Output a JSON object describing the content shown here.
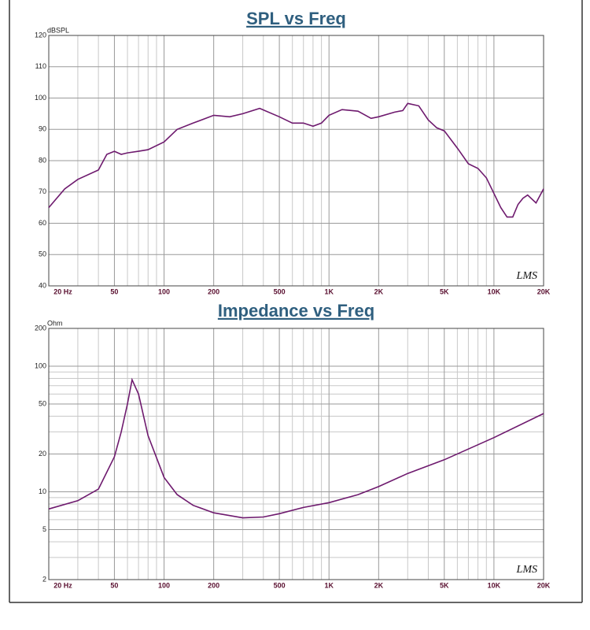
{
  "chart_data": [
    {
      "type": "line",
      "title": "SPL vs Freq",
      "y_label": "dBSPL",
      "watermark": "LMS",
      "xscale": "log",
      "yscale": "linear",
      "grid": true,
      "color": "#6e1a6e",
      "x": [
        20,
        25,
        30,
        40,
        45,
        50,
        55,
        60,
        70,
        80,
        100,
        120,
        150,
        200,
        250,
        300,
        380,
        500,
        600,
        700,
        800,
        900,
        1000,
        1200,
        1500,
        1800,
        2000,
        2500,
        2800,
        3000,
        3500,
        4000,
        4500,
        5000,
        6000,
        7000,
        8000,
        9000,
        10000,
        11000,
        12000,
        13000,
        14000,
        15000,
        16000,
        18000,
        20000
      ],
      "values": [
        65,
        71,
        74,
        77,
        82,
        83,
        82,
        82.5,
        83,
        83.5,
        86,
        90,
        92,
        94.5,
        94,
        95,
        96.7,
        94,
        92,
        92,
        91,
        92,
        94.5,
        96.3,
        95.8,
        93.5,
        94,
        95.5,
        96,
        98.3,
        97.5,
        93,
        90.5,
        89.5,
        84,
        79,
        77.5,
        74.5,
        69.5,
        65,
        62,
        62,
        66,
        68,
        69,
        66.5,
        71
      ],
      "xlim": [
        20,
        20000
      ],
      "ylim": [
        40,
        120
      ],
      "xticks": [
        {
          "value": 20,
          "label": "20  Hz"
        },
        50,
        100,
        200,
        500,
        {
          "value": 1000,
          "label": "1K"
        },
        {
          "value": 2000,
          "label": "2K"
        },
        {
          "value": 5000,
          "label": "5K"
        },
        {
          "value": 10000,
          "label": "10K"
        },
        {
          "value": 20000,
          "label": "20K"
        }
      ],
      "x_minor_grid": [
        30,
        40,
        60,
        70,
        80,
        90,
        300,
        400,
        600,
        700,
        800,
        900,
        3000,
        4000,
        6000,
        7000,
        8000,
        9000
      ],
      "yticks": [
        40,
        50,
        60,
        70,
        80,
        90,
        100,
        110,
        120
      ]
    },
    {
      "type": "line",
      "title": "Impedance vs Freq",
      "y_label": "Ohm",
      "watermark": "LMS",
      "xscale": "log",
      "yscale": "log",
      "grid": true,
      "color": "#6e1a6e",
      "x": [
        20,
        30,
        40,
        50,
        55,
        60,
        64,
        70,
        80,
        100,
        120,
        150,
        200,
        300,
        400,
        500,
        700,
        1000,
        1500,
        2000,
        3000,
        5000,
        10000,
        20000
      ],
      "values": [
        7.3,
        8.5,
        10.5,
        19,
        30,
        50,
        78,
        60,
        28,
        13,
        9.5,
        7.8,
        6.8,
        6.2,
        6.3,
        6.7,
        7.5,
        8.2,
        9.5,
        11,
        14,
        18,
        27,
        42
      ],
      "xlim": [
        20,
        20000
      ],
      "ylim": [
        2,
        200
      ],
      "xticks": [
        {
          "value": 20,
          "label": "20  Hz"
        },
        50,
        100,
        200,
        500,
        {
          "value": 1000,
          "label": "1K"
        },
        {
          "value": 2000,
          "label": "2K"
        },
        {
          "value": 5000,
          "label": "5K"
        },
        {
          "value": 10000,
          "label": "10K"
        },
        {
          "value": 20000,
          "label": "20K"
        }
      ],
      "x_minor_grid": [
        30,
        40,
        60,
        70,
        80,
        90,
        300,
        400,
        600,
        700,
        800,
        900,
        3000,
        4000,
        6000,
        7000,
        8000,
        9000
      ],
      "yticks": [
        2,
        5,
        10,
        20,
        50,
        100,
        200
      ],
      "y_minor_grid": [
        3,
        4,
        6,
        7,
        8,
        9,
        30,
        40,
        60,
        70,
        80,
        90
      ]
    }
  ]
}
